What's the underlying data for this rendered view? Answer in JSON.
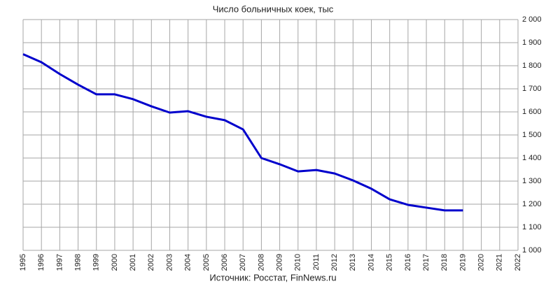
{
  "chart_data": {
    "type": "line",
    "title": "Число больничных коек, тыс",
    "source": "Источник: Росстат, FinNews.ru",
    "x": [
      1995,
      1996,
      1997,
      1998,
      1999,
      2000,
      2001,
      2002,
      2003,
      2004,
      2005,
      2006,
      2007,
      2008,
      2009,
      2010,
      2011,
      2012,
      2013,
      2014,
      2015,
      2016,
      2017,
      2018,
      2019
    ],
    "series": [
      {
        "color": "#0000cc",
        "values": [
          1850,
          1815,
          1764,
          1718,
          1676,
          1676,
          1655,
          1624,
          1597,
          1603,
          1579,
          1564,
          1524,
          1400,
          1373,
          1342,
          1348,
          1333,
          1303,
          1267,
          1221,
          1197,
          1185,
          1173,
          1173
        ]
      }
    ],
    "xlim": [
      1995,
      2022
    ],
    "xticks": [
      1995,
      1996,
      1997,
      1998,
      1999,
      2000,
      2001,
      2002,
      2003,
      2004,
      2005,
      2006,
      2007,
      2008,
      2009,
      2010,
      2011,
      2012,
      2013,
      2014,
      2015,
      2016,
      2017,
      2018,
      2019,
      2020,
      2021,
      2022
    ],
    "ylim": [
      1000,
      2000
    ],
    "yticks": [
      {
        "value": 1000,
        "label": "1 000"
      },
      {
        "value": 1100,
        "label": "1 100"
      },
      {
        "value": 1200,
        "label": "1 200"
      },
      {
        "value": 1300,
        "label": "1 300"
      },
      {
        "value": 1400,
        "label": "1 400"
      },
      {
        "value": 1500,
        "label": "1 500"
      },
      {
        "value": 1600,
        "label": "1 600"
      },
      {
        "value": 1700,
        "label": "1 700"
      },
      {
        "value": 1800,
        "label": "1 800"
      },
      {
        "value": 1900,
        "label": "1 900"
      },
      {
        "value": 2000,
        "label": "2 000"
      }
    ],
    "grid": true
  }
}
